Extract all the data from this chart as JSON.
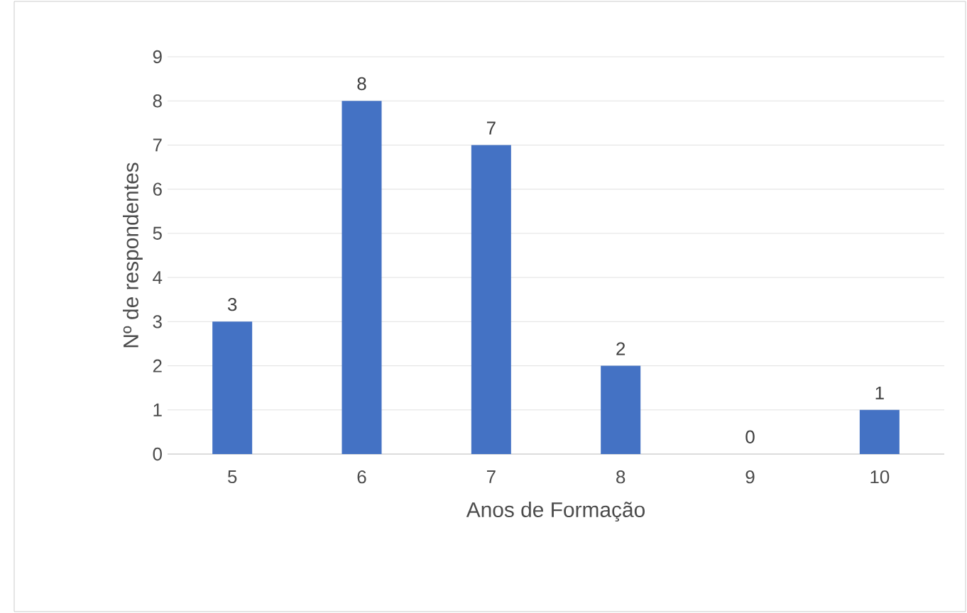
{
  "chart_data": {
    "type": "bar",
    "xlabel": "Anos de Formação",
    "ylabel": "Nº de respondentes",
    "categories": [
      "5",
      "6",
      "7",
      "8",
      "9",
      "10"
    ],
    "values": [
      3,
      8,
      7,
      2,
      0,
      1
    ],
    "color": "#4472c4",
    "ylim": [
      0,
      9
    ],
    "yticks": [
      0,
      1,
      2,
      3,
      4,
      5,
      6,
      7,
      8,
      9
    ],
    "grid": "y",
    "data_labels": true
  }
}
